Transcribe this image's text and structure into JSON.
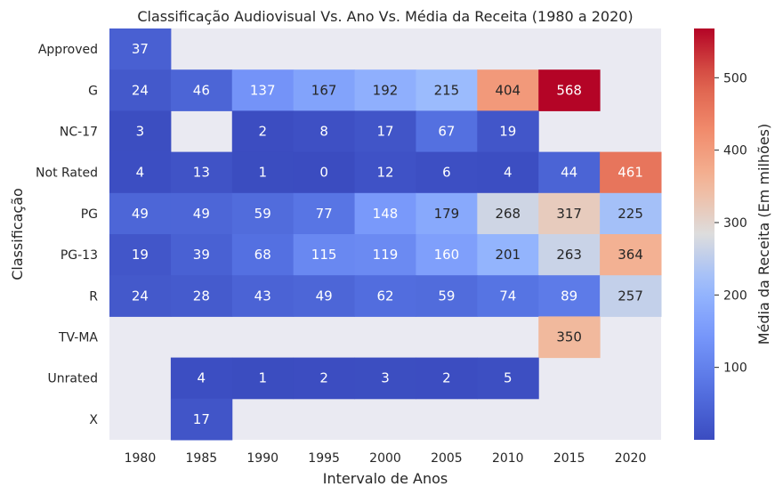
{
  "chart_data": {
    "type": "heatmap",
    "title": "Classificação Audiovisual Vs. Ano Vs. Média da Receita (1980 a 2020)",
    "xlabel": "Intervalo de Anos",
    "ylabel": "Classificação",
    "x": [
      "1980",
      "1985",
      "1990",
      "1995",
      "2000",
      "2005",
      "2010",
      "2015",
      "2020"
    ],
    "y": [
      "Approved",
      "G",
      "NC-17",
      "Not Rated",
      "PG",
      "PG-13",
      "R",
      "TV-MA",
      "Unrated",
      "X"
    ],
    "values": [
      [
        37,
        null,
        null,
        null,
        null,
        null,
        null,
        null,
        null
      ],
      [
        24,
        46,
        137,
        167,
        192,
        215,
        404,
        568,
        null
      ],
      [
        3,
        null,
        2,
        8,
        17,
        67,
        19,
        null,
        null
      ],
      [
        4,
        13,
        1,
        0,
        12,
        6,
        4,
        44,
        461
      ],
      [
        49,
        49,
        59,
        77,
        148,
        179,
        268,
        317,
        225
      ],
      [
        19,
        39,
        68,
        115,
        119,
        160,
        201,
        263,
        364
      ],
      [
        24,
        28,
        43,
        49,
        62,
        59,
        74,
        89,
        257
      ],
      [
        null,
        null,
        null,
        null,
        null,
        null,
        null,
        350,
        null
      ],
      [
        null,
        4,
        1,
        2,
        3,
        2,
        5,
        null,
        null
      ],
      [
        null,
        17,
        null,
        null,
        null,
        null,
        null,
        null,
        null
      ]
    ],
    "colormap": "coolwarm",
    "vmin": 0,
    "vmax": 568,
    "colorbar": {
      "label": "Média da Receita (Em milhões)",
      "ticks": [
        100,
        200,
        300,
        400,
        500
      ]
    },
    "background_color": "#eaeaf2"
  }
}
